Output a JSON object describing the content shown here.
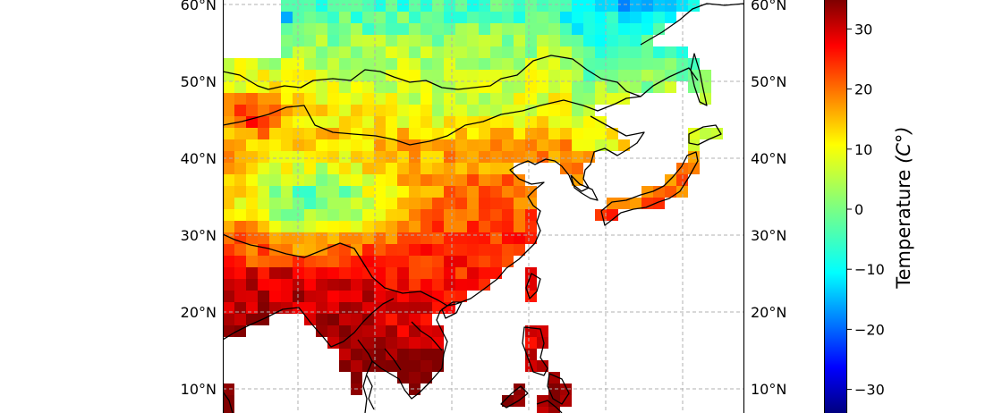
{
  "map": {
    "type": "heatmap",
    "lat_range": [
      7,
      62
    ],
    "lon_range": [
      70,
      160
    ],
    "lat_ticks": [
      {
        "value": 60,
        "label": "60°N"
      },
      {
        "value": 50,
        "label": "50°N"
      },
      {
        "value": 40,
        "label": "40°N"
      },
      {
        "value": 30,
        "label": "30°N"
      },
      {
        "value": 20,
        "label": "20°N"
      },
      {
        "value": 10,
        "label": "10°N"
      }
    ],
    "lon_gridlines": [
      80,
      90,
      100,
      110,
      120,
      130,
      140,
      150
    ],
    "grid": true,
    "cell_size_deg": 1.5,
    "colorbar": {
      "label": "Temperature",
      "unit_label": "(C°)",
      "colormap": "jet",
      "range": [
        -35,
        35
      ],
      "ticks": [
        {
          "value": 30,
          "label": "30"
        },
        {
          "value": 20,
          "label": "20"
        },
        {
          "value": 10,
          "label": "10"
        },
        {
          "value": 0,
          "label": "0"
        },
        {
          "value": -10,
          "label": "−10"
        },
        {
          "value": -20,
          "label": "−20"
        },
        {
          "value": -30,
          "label": "−30"
        }
      ]
    }
  }
}
